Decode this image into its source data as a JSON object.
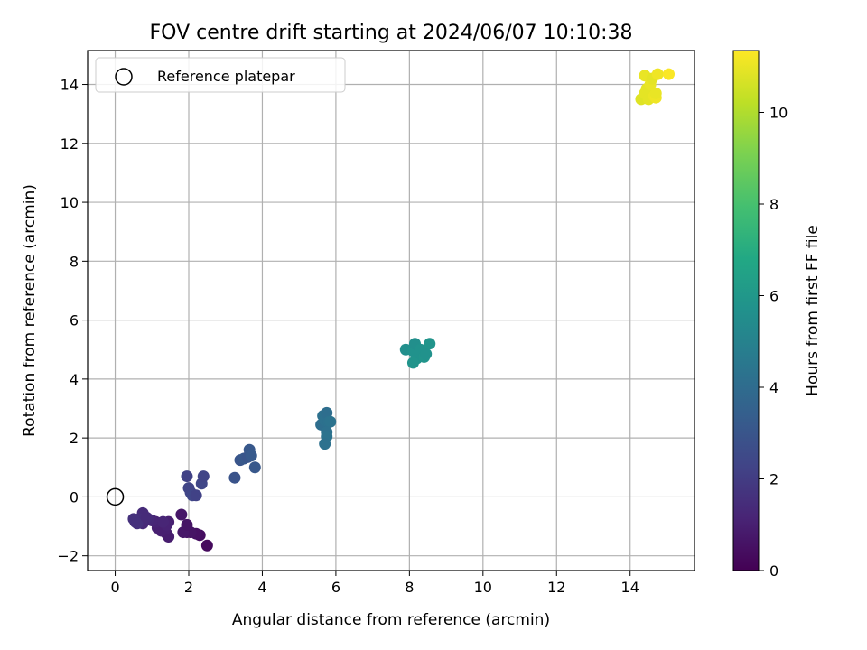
{
  "chart_data": {
    "type": "scatter",
    "title": "FOV centre drift starting at 2024/06/07 10:10:38",
    "xlabel": "Angular distance from reference (arcmin)",
    "ylabel": "Rotation from reference (arcmin)",
    "xlim": [
      -0.75,
      15.75
    ],
    "ylim": [
      -2.5,
      15.15
    ],
    "xticks": [
      0,
      2,
      4,
      6,
      8,
      10,
      12,
      14
    ],
    "yticks": [
      -2,
      0,
      2,
      4,
      6,
      8,
      10,
      12,
      14
    ],
    "grid": true,
    "legend": {
      "placement": "top-left",
      "entries": [
        "Reference platepar"
      ]
    },
    "reference_point": {
      "label": "Reference platepar",
      "x": 0,
      "y": 0
    },
    "colorbar": {
      "label": "Hours from first FF file",
      "colormap": "viridis",
      "range": [
        0,
        11.35
      ],
      "ticks": [
        0,
        2,
        4,
        6,
        8,
        10
      ]
    },
    "series": [
      {
        "points": [
          [
            2.5,
            -1.65,
            0.3
          ],
          [
            2.3,
            -1.3,
            0.4
          ],
          [
            2.2,
            -1.25,
            0.5
          ],
          [
            2.05,
            -1.2,
            0.6
          ],
          [
            1.95,
            -1.2,
            0.6
          ],
          [
            1.85,
            -1.2,
            0.7
          ],
          [
            1.95,
            -0.95,
            0.6
          ],
          [
            1.8,
            -0.6,
            0.7
          ],
          [
            1.45,
            -1.35,
            0.9
          ],
          [
            1.4,
            -1.25,
            0.9
          ],
          [
            1.35,
            -1.1,
            1.0
          ],
          [
            1.25,
            -1.15,
            1.0
          ],
          [
            1.15,
            -1.05,
            1.0
          ],
          [
            1.1,
            -0.85,
            1.1
          ],
          [
            1.45,
            -0.85,
            1.0
          ],
          [
            1.4,
            -0.95,
            1.1
          ],
          [
            1.3,
            -0.85,
            1.2
          ],
          [
            1.0,
            -0.8,
            1.2
          ],
          [
            0.9,
            -0.75,
            1.3
          ],
          [
            0.75,
            -0.9,
            1.3
          ],
          [
            0.75,
            -0.55,
            1.4
          ],
          [
            0.65,
            -0.75,
            1.5
          ],
          [
            0.55,
            -0.85,
            1.5
          ],
          [
            0.5,
            -0.75,
            1.6
          ],
          [
            0.6,
            -0.9,
            1.6
          ],
          [
            0.85,
            -0.7,
            1.4
          ],
          [
            1.95,
            0.7,
            2.2
          ],
          [
            2.0,
            0.3,
            2.3
          ],
          [
            2.05,
            0.15,
            2.3
          ],
          [
            2.1,
            0.05,
            2.4
          ],
          [
            2.2,
            0.05,
            2.2
          ],
          [
            2.35,
            0.45,
            2.4
          ],
          [
            2.4,
            0.7,
            2.3
          ],
          [
            3.25,
            0.65,
            2.9
          ],
          [
            3.4,
            1.25,
            3.0
          ],
          [
            3.5,
            1.3,
            3.1
          ],
          [
            3.6,
            1.35,
            3.0
          ],
          [
            3.65,
            1.6,
            3.1
          ],
          [
            3.7,
            1.4,
            3.2
          ],
          [
            3.8,
            1.0,
            3.1
          ],
          [
            5.6,
            2.45,
            4.1
          ],
          [
            5.65,
            2.75,
            4.2
          ],
          [
            5.7,
            2.6,
            4.2
          ],
          [
            5.75,
            2.85,
            4.1
          ],
          [
            5.8,
            2.55,
            4.2
          ],
          [
            5.85,
            2.55,
            4.3
          ],
          [
            5.75,
            2.2,
            4.2
          ],
          [
            5.75,
            2.05,
            4.3
          ],
          [
            5.7,
            1.8,
            4.2
          ],
          [
            7.9,
            5.0,
            5.6
          ],
          [
            8.1,
            4.95,
            5.7
          ],
          [
            8.15,
            5.2,
            5.6
          ],
          [
            8.2,
            4.7,
            5.7
          ],
          [
            8.1,
            4.55,
            5.8
          ],
          [
            8.3,
            5.0,
            5.7
          ],
          [
            8.4,
            4.75,
            5.8
          ],
          [
            8.45,
            4.85,
            5.7
          ],
          [
            8.55,
            5.2,
            5.8
          ],
          [
            14.3,
            13.5,
            10.8
          ],
          [
            14.4,
            13.7,
            10.9
          ],
          [
            14.45,
            13.85,
            10.9
          ],
          [
            14.4,
            14.3,
            11.0
          ],
          [
            14.5,
            13.5,
            10.9
          ],
          [
            14.55,
            14.0,
            11.0
          ],
          [
            14.6,
            14.2,
            10.9
          ],
          [
            14.65,
            13.6,
            11.0
          ],
          [
            14.7,
            13.55,
            11.1
          ],
          [
            14.7,
            13.7,
            11.0
          ],
          [
            14.75,
            14.35,
            11.1
          ],
          [
            15.05,
            14.35,
            11.3
          ]
        ]
      }
    ]
  }
}
